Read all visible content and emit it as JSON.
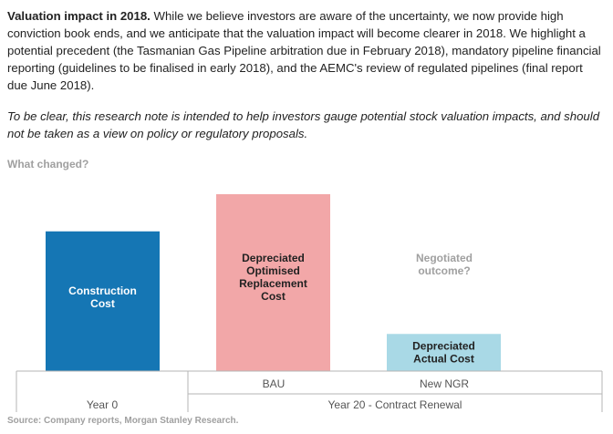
{
  "intro": {
    "lead": "Valuation impact in 2018.",
    "body": " While we believe investors are aware of the uncertainty, we now provide high conviction book ends, and we anticipate that the valuation impact will become clearer in 2018. We highlight a potential precedent (the Tasmanian Gas Pipeline arbitration due in February 2018), mandatory pipeline financial reporting (guidelines to be finalised in early 2018), and the AEMC's review of regulated pipelines (final report due June 2018)."
  },
  "disclaimer": "To be clear, this research note is intended to help investors gauge potential stock valuation impacts, and should not be taken as a view on policy or regulatory proposals.",
  "section_label": "What changed?",
  "chart_data": {
    "type": "bar",
    "bars": [
      {
        "lines": [
          "Construction",
          "Cost"
        ],
        "value": 0.79,
        "color": "#1576b4",
        "text_color": "#ffffff",
        "label_in_bar": true
      },
      {
        "lines": [
          "Depreciated",
          "Optimised",
          "Replacement",
          "Cost"
        ],
        "value": 1.0,
        "color": "#f2a7a8",
        "text_color": "#222222",
        "label_in_bar": true
      },
      {
        "lines": [
          "Depreciated",
          "Actual Cost"
        ],
        "value": 0.21,
        "color": "#a9d9e6",
        "text_color": "#222222",
        "label_in_bar": true
      }
    ],
    "annotation": [
      "Negotiated",
      "outcome?"
    ],
    "sub_labels": [
      "",
      "BAU",
      "New NGR"
    ],
    "group_labels": [
      "Year 0",
      "Year 20 - Contract Renewal"
    ]
  },
  "source": "Source: Company reports, Morgan Stanley Research."
}
